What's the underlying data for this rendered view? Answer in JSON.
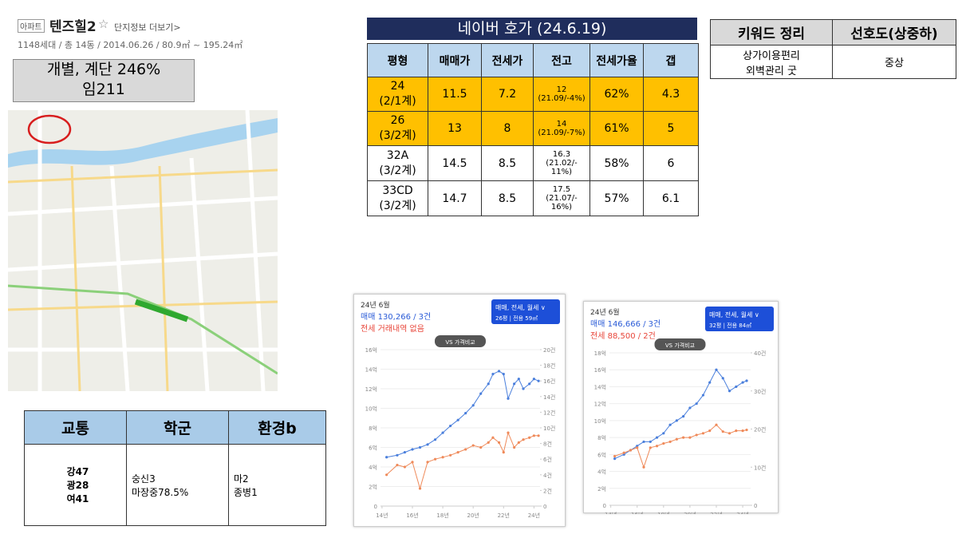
{
  "header": {
    "tag": "아파트",
    "name": "텐즈힐2",
    "star": "☆",
    "more": "단지정보 더보기>",
    "info": "1148세대 / 총 14동 / 2014.06.26 / 80.9㎡ ~ 195.24㎡"
  },
  "box": {
    "line1": "개별, 계단 246%",
    "line2": "임211"
  },
  "area_table": {
    "headers": [
      "교통",
      "학군",
      "환경b"
    ],
    "row": [
      [
        "강47",
        "광28",
        "여41"
      ],
      [
        "숭신3",
        "마장중78.5%"
      ],
      [
        "마2",
        "종병1"
      ]
    ]
  },
  "naver": {
    "title": "네이버 호가 (24.6.19)",
    "headers": [
      "평형",
      "매매가",
      "전세가",
      "전고",
      "전세가율",
      "갭"
    ],
    "rows": [
      [
        [
          "24",
          "(2/1계)"
        ],
        "11.5",
        "7.2",
        [
          "12",
          "(21.09/-4%)"
        ],
        "62%",
        "4.3"
      ],
      [
        [
          "26",
          "(3/2계)"
        ],
        "13",
        "8",
        [
          "14",
          "(21.09/-7%)"
        ],
        "61%",
        "5"
      ],
      [
        [
          "32A",
          "(3/2계)"
        ],
        "14.5",
        "8.5",
        [
          "16.3",
          "(21.02/-",
          "11%)"
        ],
        "58%",
        "6"
      ],
      [
        [
          "33CD",
          "(3/2계)"
        ],
        "14.7",
        "8.5",
        [
          "17.5",
          "(21.07/-",
          "16%)"
        ],
        "57%",
        "6.1"
      ]
    ],
    "highlight_rows": 2
  },
  "keyword": {
    "headers": [
      "키워드 정리",
      "선호도(상중하)"
    ],
    "row": [
      [
        "상가이용편리",
        "외벽관리 굿"
      ],
      "중상"
    ]
  },
  "charts": [
    {
      "period": "24년 6월",
      "sale": "매매 130,266 / 3건",
      "jeonse": "전세 거래내역 없음",
      "button": "매매, 전세, 월세 ∨",
      "size": "26평 | 전용 59㎡",
      "vs": "VS 가격비교",
      "xlim": [
        13.9,
        24.4
      ],
      "xticks": [
        {
          "value": 14,
          "label": "14년"
        },
        {
          "value": 16,
          "label": "16년"
        },
        {
          "value": 18,
          "label": "18년"
        },
        {
          "value": 20,
          "label": "20년"
        },
        {
          "value": 22,
          "label": "22년"
        },
        {
          "value": 24,
          "label": "24년"
        }
      ],
      "ylim": [
        0,
        16
      ],
      "yticks": [
        0,
        {
          "value": 2,
          "label": "2억"
        },
        {
          "value": 4,
          "label": "4억"
        },
        {
          "value": 6,
          "label": "6억"
        },
        {
          "value": 8,
          "label": "8억"
        },
        {
          "value": 10,
          "label": "10억"
        },
        {
          "value": 12,
          "label": "12억"
        },
        {
          "value": 14,
          "label": "14억"
        },
        {
          "value": 16,
          "label": "16억"
        }
      ],
      "y2lim": [
        0,
        20
      ],
      "y2ticks": [
        0,
        {
          "value": 2,
          "label": "2건"
        },
        {
          "value": 4,
          "label": "4건"
        },
        {
          "value": 6,
          "label": "6건"
        },
        {
          "value": 8,
          "label": "8건"
        },
        {
          "value": 10,
          "label": "10건"
        },
        {
          "value": 12,
          "label": "12건"
        },
        {
          "value": 14,
          "label": "14건"
        },
        {
          "value": 16,
          "label": "16건"
        },
        {
          "value": 18,
          "label": "18건"
        },
        {
          "value": 20,
          "label": "20건"
        }
      ],
      "series": [
        {
          "color": "#4a7fdc",
          "x": [
            14.3,
            15,
            15.5,
            16,
            16.5,
            17,
            17.5,
            18,
            18.5,
            19,
            19.5,
            20,
            20.5,
            21,
            21.3,
            21.7,
            22,
            22.3,
            22.7,
            23,
            23.3,
            23.7,
            24,
            24.3
          ],
          "values": [
            5,
            5.2,
            5.5,
            5.8,
            6,
            6.3,
            6.8,
            7.5,
            8.2,
            8.8,
            9.5,
            10.3,
            11.5,
            12.5,
            13.5,
            13.8,
            13.5,
            11,
            12.5,
            13,
            12,
            12.5,
            13,
            12.8
          ]
        },
        {
          "color": "#ef8a5a",
          "x": [
            14.3,
            15,
            15.5,
            16,
            16.5,
            17,
            17.5,
            18,
            18.5,
            19,
            19.5,
            20,
            20.5,
            21,
            21.3,
            21.7,
            22,
            22.3,
            22.7,
            23,
            23.3,
            23.7,
            24,
            24.3
          ],
          "values": [
            3.2,
            4.2,
            4,
            4.5,
            1.8,
            4.5,
            4.8,
            5,
            5.2,
            5.5,
            5.8,
            6.2,
            6,
            6.5,
            7,
            6.5,
            5.5,
            7.5,
            6,
            6.5,
            6.8,
            7,
            7.2,
            7.2
          ]
        }
      ]
    },
    {
      "period": "24년 6월",
      "sale": "매매 146,666 / 3건",
      "jeonse": "전세 88,500 / 2건",
      "button": "매매, 전세, 월세 ∨",
      "size": "32평 | 전용 84㎡",
      "vs": "VS 가격비교",
      "xlim": [
        13.9,
        24.6
      ],
      "xticks": [
        {
          "value": 14,
          "label": "14년"
        },
        {
          "value": 16,
          "label": "16년"
        },
        {
          "value": 18,
          "label": "18년"
        },
        {
          "value": 20,
          "label": "20년"
        },
        {
          "value": 22,
          "label": "22년"
        },
        {
          "value": 24,
          "label": "24년"
        }
      ],
      "ylim": [
        0,
        18
      ],
      "yticks": [
        0,
        {
          "value": 2,
          "label": "2억"
        },
        {
          "value": 4,
          "label": "4억"
        },
        {
          "value": 6,
          "label": "6억"
        },
        {
          "value": 8,
          "label": "8억"
        },
        {
          "value": 10,
          "label": "10억"
        },
        {
          "value": 12,
          "label": "12억"
        },
        {
          "value": 14,
          "label": "14억"
        },
        {
          "value": 16,
          "label": "16억"
        },
        {
          "value": 18,
          "label": "18억"
        }
      ],
      "y2lim": [
        0,
        40
      ],
      "y2ticks": [
        0,
        {
          "value": 10,
          "label": "10건"
        },
        {
          "value": 20,
          "label": "20건"
        },
        {
          "value": 30,
          "label": "30건"
        },
        {
          "value": 40,
          "label": "40건"
        }
      ],
      "series": [
        {
          "color": "#4a7fdc",
          "x": [
            14.3,
            15,
            15.5,
            16,
            16.5,
            17,
            17.5,
            18,
            18.5,
            19,
            19.5,
            20,
            20.5,
            21,
            21.5,
            22,
            22.5,
            23,
            23.5,
            24,
            24.3
          ],
          "values": [
            5.5,
            6,
            6.5,
            7,
            7.5,
            7.5,
            8,
            8.5,
            9.5,
            10,
            10.5,
            11.5,
            12,
            13,
            14.5,
            16,
            15,
            13.5,
            14,
            14.5,
            14.7
          ]
        },
        {
          "color": "#ef8a5a",
          "x": [
            14.3,
            15,
            15.5,
            16,
            16.5,
            17,
            17.5,
            18,
            18.5,
            19,
            19.5,
            20,
            20.5,
            21,
            21.5,
            22,
            22.5,
            23,
            23.5,
            24,
            24.3
          ],
          "values": [
            5.8,
            6.2,
            6.5,
            6.8,
            4.5,
            6.8,
            7,
            7.3,
            7.5,
            7.8,
            8,
            8,
            8.3,
            8.5,
            8.8,
            9.5,
            8.7,
            8.5,
            8.8,
            8.8,
            8.9
          ]
        }
      ]
    }
  ]
}
